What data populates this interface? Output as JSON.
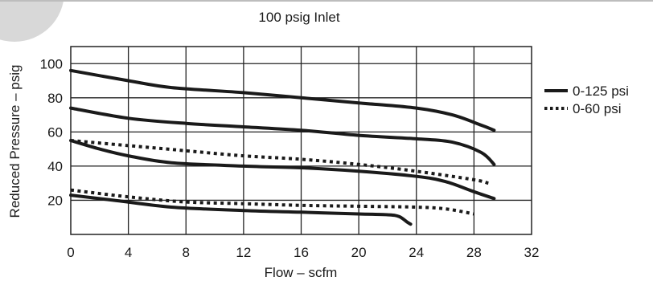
{
  "chart_data": {
    "type": "line",
    "title": "100 psig Inlet",
    "xlabel": "Flow – scfm",
    "ylabel": "Reduced Pressure – psig",
    "xlim": [
      0,
      32
    ],
    "ylim": [
      0,
      110
    ],
    "x_ticks": [
      "0",
      "4",
      "8",
      "12",
      "16",
      "20",
      "24",
      "28",
      "32"
    ],
    "y_ticks": [
      "20",
      "40",
      "60",
      "80",
      "100"
    ],
    "grid": true,
    "legend_position": "right",
    "legend": [
      {
        "label": "0-125 psi",
        "style": "solid"
      },
      {
        "label": "0-60 psi",
        "style": "dotted"
      }
    ],
    "series": [
      {
        "group": "0-125 psi",
        "style": "solid",
        "color": "#1a1a1a",
        "points": [
          [
            0,
            96
          ],
          [
            4,
            90
          ],
          [
            7,
            86
          ],
          [
            12,
            83
          ],
          [
            16,
            80
          ],
          [
            20,
            77
          ],
          [
            24,
            74
          ],
          [
            26.5,
            70
          ],
          [
            28.5,
            64
          ],
          [
            29.4,
            61
          ]
        ]
      },
      {
        "group": "0-125 psi",
        "style": "solid",
        "color": "#1a1a1a",
        "points": [
          [
            0,
            74
          ],
          [
            4,
            68
          ],
          [
            8,
            65
          ],
          [
            12,
            63
          ],
          [
            16,
            61
          ],
          [
            20,
            58
          ],
          [
            24,
            56
          ],
          [
            26.5,
            54
          ],
          [
            28.5,
            48
          ],
          [
            29.4,
            41
          ]
        ]
      },
      {
        "group": "0-125 psi",
        "style": "solid",
        "color": "#1a1a1a",
        "points": [
          [
            0,
            55
          ],
          [
            2,
            50
          ],
          [
            4,
            46
          ],
          [
            7,
            42
          ],
          [
            12,
            40
          ],
          [
            16,
            39
          ],
          [
            20,
            37
          ],
          [
            24,
            34
          ],
          [
            26,
            31
          ],
          [
            28,
            25
          ],
          [
            29.4,
            21
          ]
        ]
      },
      {
        "group": "0-125 psi",
        "style": "solid",
        "color": "#1a1a1a",
        "points": [
          [
            0,
            23
          ],
          [
            3,
            20
          ],
          [
            7,
            16
          ],
          [
            12,
            14
          ],
          [
            16,
            13
          ],
          [
            20,
            12
          ],
          [
            22,
            11.5
          ],
          [
            22.8,
            10.5
          ],
          [
            23.4,
            7
          ],
          [
            23.6,
            6
          ]
        ]
      },
      {
        "group": "0-60 psi",
        "style": "dotted",
        "color": "#1a1a1a",
        "points": [
          [
            0,
            55
          ],
          [
            4,
            52
          ],
          [
            8,
            49
          ],
          [
            12,
            46
          ],
          [
            16,
            44
          ],
          [
            20,
            41
          ],
          [
            24,
            37
          ],
          [
            28,
            32
          ],
          [
            29,
            30
          ]
        ]
      },
      {
        "group": "0-60 psi",
        "style": "dotted",
        "color": "#1a1a1a",
        "points": [
          [
            0,
            26
          ],
          [
            4,
            22
          ],
          [
            8,
            19
          ],
          [
            12,
            18
          ],
          [
            16,
            17
          ],
          [
            20,
            16.5
          ],
          [
            24,
            16
          ],
          [
            26,
            15
          ],
          [
            28,
            12
          ]
        ]
      }
    ]
  }
}
